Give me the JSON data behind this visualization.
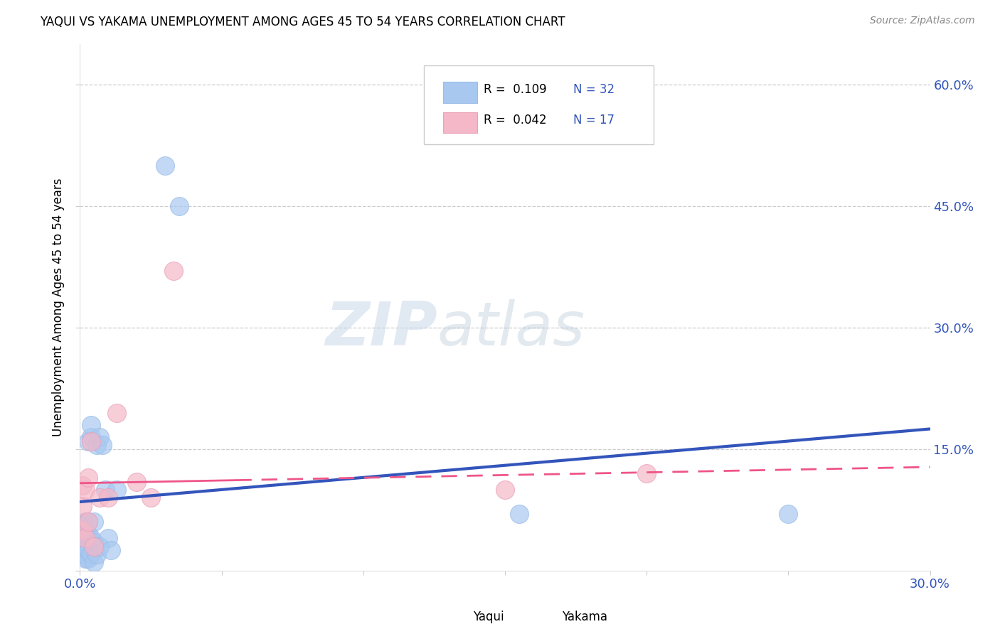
{
  "title": "YAQUI VS YAKAMA UNEMPLOYMENT AMONG AGES 45 TO 54 YEARS CORRELATION CHART",
  "source": "Source: ZipAtlas.com",
  "ylabel": "Unemployment Among Ages 45 to 54 years",
  "xlim": [
    0.0,
    0.3
  ],
  "ylim": [
    0.0,
    0.65
  ],
  "yaqui_color": "#A8C8F0",
  "yakama_color": "#F5B8C8",
  "yaqui_line_color": "#3355BB",
  "yakama_line_color": "#EE5588",
  "watermark_zip": "ZIP",
  "watermark_atlas": "atlas",
  "yaqui_x": [
    0.001,
    0.001,
    0.001,
    0.002,
    0.002,
    0.002,
    0.002,
    0.003,
    0.003,
    0.003,
    0.003,
    0.003,
    0.004,
    0.004,
    0.004,
    0.004,
    0.005,
    0.005,
    0.005,
    0.006,
    0.006,
    0.007,
    0.007,
    0.008,
    0.009,
    0.01,
    0.011,
    0.013,
    0.03,
    0.035,
    0.155,
    0.25
  ],
  "yaqui_y": [
    0.02,
    0.035,
    0.055,
    0.015,
    0.03,
    0.045,
    0.06,
    0.015,
    0.025,
    0.045,
    0.06,
    0.16,
    0.02,
    0.04,
    0.165,
    0.18,
    0.01,
    0.035,
    0.06,
    0.02,
    0.155,
    0.03,
    0.165,
    0.155,
    0.1,
    0.04,
    0.025,
    0.1,
    0.5,
    0.45,
    0.07,
    0.07
  ],
  "yakama_x": [
    0.001,
    0.001,
    0.001,
    0.002,
    0.002,
    0.003,
    0.003,
    0.004,
    0.005,
    0.007,
    0.01,
    0.013,
    0.02,
    0.025,
    0.033,
    0.15,
    0.2
  ],
  "yakama_y": [
    0.05,
    0.08,
    0.105,
    0.04,
    0.1,
    0.06,
    0.115,
    0.16,
    0.03,
    0.09,
    0.09,
    0.195,
    0.11,
    0.09,
    0.37,
    0.1,
    0.12
  ],
  "yaqui_trend_x0": 0.0,
  "yaqui_trend_y0": 0.085,
  "yaqui_trend_x1": 0.3,
  "yaqui_trend_y1": 0.175,
  "yakama_trend_x0": 0.0,
  "yakama_trend_y0": 0.108,
  "yakama_trend_x1": 0.3,
  "yakama_trend_y1": 0.128
}
